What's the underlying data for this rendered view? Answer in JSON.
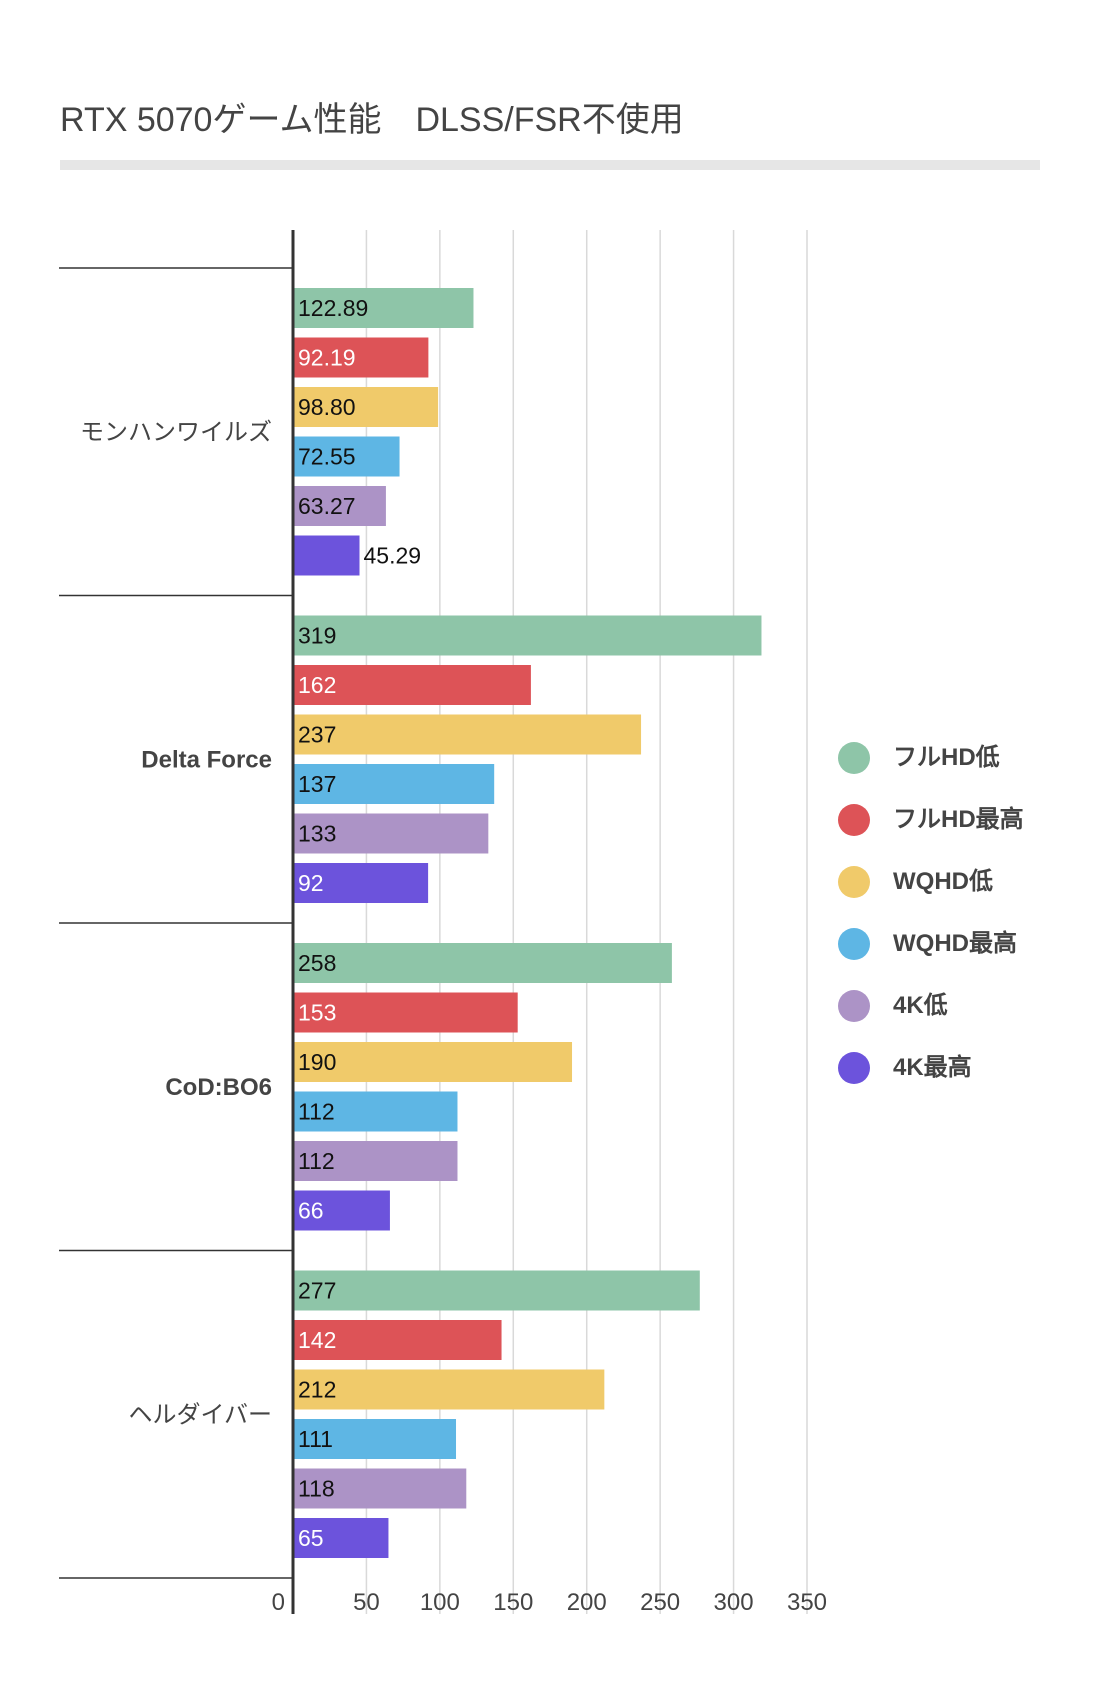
{
  "chart_data": {
    "type": "bar",
    "orientation": "horizontal",
    "title": "RTX 5070ゲーム性能　DLSS/FSR不使用",
    "categories": [
      "モンハンワイルズ",
      "Delta Force",
      "CoD:BO6",
      "ヘルダイバー"
    ],
    "series": [
      {
        "name": "フルHD低",
        "color": "#8ec5a8",
        "label_color": "#111111",
        "values": [
          122.89,
          319,
          258,
          277
        ],
        "labels": [
          "122.89",
          "319",
          "258",
          "277"
        ]
      },
      {
        "name": "フルHD最高",
        "color": "#dd5357",
        "label_color": "#ffffff",
        "values": [
          92.19,
          162,
          153,
          142
        ],
        "labels": [
          "92.19",
          "162",
          "153",
          "142"
        ]
      },
      {
        "name": "WQHD低",
        "color": "#f0ca6a",
        "label_color": "#111111",
        "values": [
          98.8,
          237,
          190,
          212
        ],
        "labels": [
          "98.80",
          "237",
          "190",
          "212"
        ]
      },
      {
        "name": "WQHD最高",
        "color": "#5eb6e4",
        "label_color": "#111111",
        "values": [
          72.55,
          137,
          112,
          111
        ],
        "labels": [
          "72.55",
          "137",
          "112",
          "111"
        ]
      },
      {
        "name": "4K低",
        "color": "#ac93c6",
        "label_color": "#111111",
        "values": [
          63.27,
          133,
          112,
          118
        ],
        "labels": [
          "63.27",
          "133",
          "112",
          "118"
        ]
      },
      {
        "name": "4K最高",
        "color": "#6c53dc",
        "label_color": "#ffffff",
        "values": [
          45.29,
          92,
          66,
          65
        ],
        "labels": [
          "45.29",
          "92",
          "66",
          "65"
        ]
      }
    ],
    "xlim": [
      0,
      350
    ],
    "xticks": [
      0,
      50,
      100,
      150,
      200,
      250,
      300,
      350
    ],
    "xtick_labels": [
      "0",
      "50",
      "100",
      "150",
      "200",
      "250",
      "300",
      "350"
    ],
    "grid": true,
    "legend_position": "right"
  }
}
